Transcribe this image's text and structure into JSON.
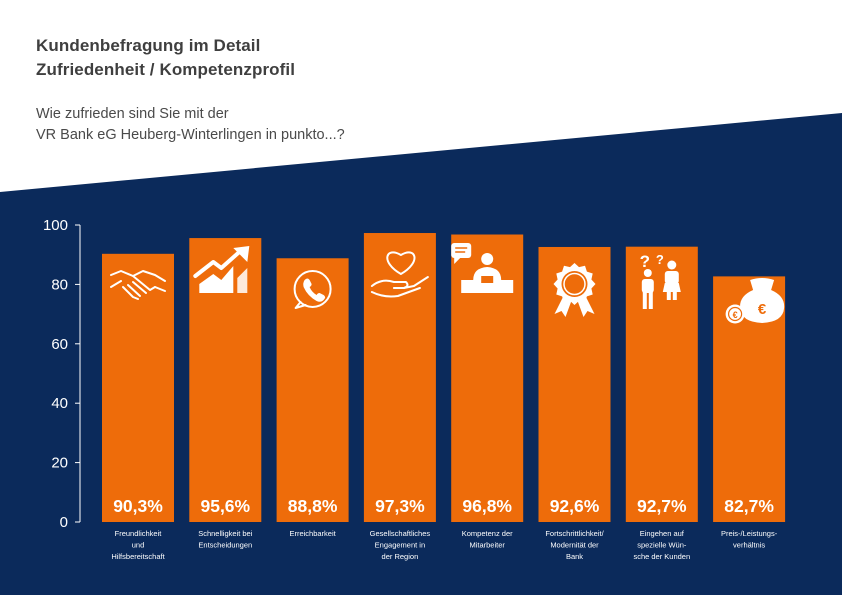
{
  "header": {
    "title_line1": "Kundenbefragung im Detail",
    "title_line2": "Zufriedenheit / Kompetenzprofil",
    "question_line1": "Wie zufrieden sind Sie mit der",
    "question_line2": "VR Bank eG Heuberg-Winterlingen in punkto...?"
  },
  "colors": {
    "background_dark": "#0b2a5b",
    "bar": "#ee6c0a",
    "text_light": "#ffffff",
    "title_text": "#3f3f3f"
  },
  "chart_data": {
    "type": "bar",
    "categories": [
      "Freundlichkeit und Hilfsbereitschaft",
      "Schnelligkeit bei Entscheidungen",
      "Erreichbarkeit",
      "Gesellschaftliches Engagement in der Region",
      "Kompetenz der Mitarbeiter",
      "Fortschrittlichkeit/ Modernität der Bank",
      "Eingehen auf spezielle Wün-sche der Kunden",
      "Preis-/Leistungs-verhältnis"
    ],
    "category_lines": [
      [
        "Freundlichkeit",
        "und",
        "Hilfsbereitschaft"
      ],
      [
        "Schnelligkeit bei",
        "Entscheidungen"
      ],
      [
        "Erreichbarkeit"
      ],
      [
        "Gesellschaftliches",
        "Engagement in",
        "der Region"
      ],
      [
        "Kompetenz der",
        "Mitarbeiter"
      ],
      [
        "Fortschrittlichkeit/",
        "Modernität der",
        "Bank"
      ],
      [
        "Eingehen auf",
        "spezielle Wün-",
        "sche der Kunden"
      ],
      [
        "Preis-/Leistungs-",
        "verhältnis"
      ]
    ],
    "values": [
      90.3,
      95.6,
      88.8,
      97.3,
      96.8,
      92.6,
      92.7,
      82.7
    ],
    "value_labels": [
      "90,3%",
      "95,6%",
      "88,8%",
      "97,3%",
      "96,8%",
      "92,6%",
      "92,7%",
      "82,7%"
    ],
    "icons": [
      "handshake-icon",
      "growth-chart-icon",
      "phone-bubble-icon",
      "heart-hand-icon",
      "advisor-icon",
      "award-rosette-icon",
      "people-question-icon",
      "money-bags-icon"
    ],
    "y_ticks": [
      "0",
      "20",
      "40",
      "60",
      "80",
      "100"
    ],
    "ylim": [
      0,
      100
    ],
    "xlabel": "",
    "ylabel": "",
    "grid": false,
    "legend": "none"
  }
}
